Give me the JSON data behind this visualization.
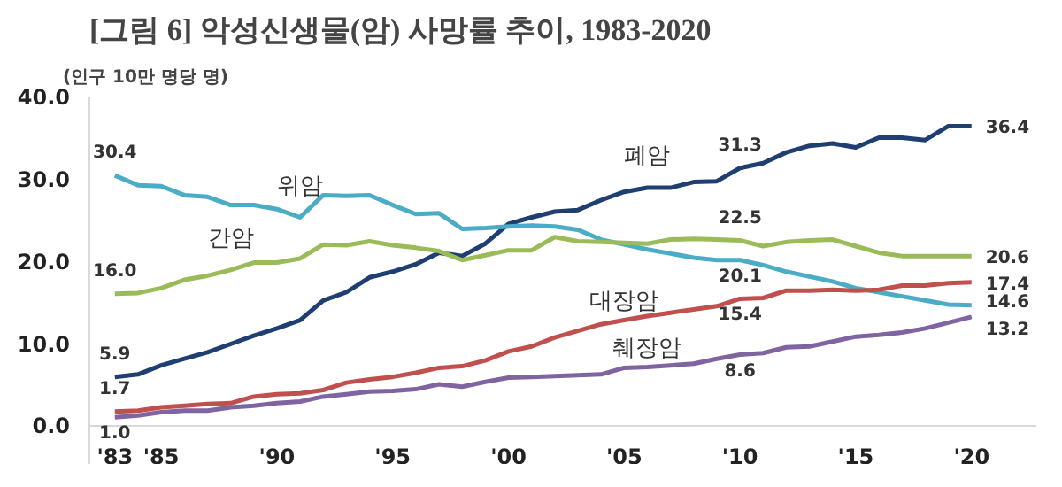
{
  "chart_data": {
    "type": "line",
    "title": "[그림 6] 악성신생물(암) 사망률 추이, 1983-2020",
    "ylabel": "(인구 10만 명당 명)",
    "x": [
      1983,
      1984,
      1985,
      1986,
      1987,
      1988,
      1989,
      1990,
      1991,
      1992,
      1993,
      1994,
      1995,
      1996,
      1997,
      1998,
      1999,
      2000,
      2001,
      2002,
      2003,
      2004,
      2005,
      2006,
      2007,
      2008,
      2009,
      2010,
      2011,
      2012,
      2013,
      2014,
      2015,
      2016,
      2017,
      2018,
      2019,
      2020
    ],
    "xlim": [
      1981.9,
      2022.8
    ],
    "xticks": [
      {
        "value": 1983,
        "label": "'83"
      },
      {
        "value": 1985,
        "label": "'85"
      },
      {
        "value": 1990,
        "label": "'90"
      },
      {
        "value": 1995,
        "label": "'95"
      },
      {
        "value": 2000,
        "label": "'00"
      },
      {
        "value": 2005,
        "label": "'05"
      },
      {
        "value": 2010,
        "label": "'10"
      },
      {
        "value": 2015,
        "label": "'15"
      },
      {
        "value": 2020,
        "label": "'20"
      }
    ],
    "ylim": [
      0,
      40
    ],
    "yticks": [
      {
        "value": 0,
        "label": "0.0"
      },
      {
        "value": 10,
        "label": "10.0"
      },
      {
        "value": 20,
        "label": "20.0"
      },
      {
        "value": 30,
        "label": "30.0"
      },
      {
        "value": 40,
        "label": "40.0"
      }
    ],
    "grid": false,
    "marker": "none",
    "line_style": "solid",
    "series": [
      {
        "name": "폐암",
        "color": "#1f3f73",
        "values": [
          5.9,
          6.2,
          7.3,
          8.1,
          8.9,
          9.9,
          10.9,
          11.8,
          12.8,
          15.2,
          16.2,
          18.0,
          18.7,
          19.6,
          21.0,
          20.6,
          22.1,
          24.5,
          25.3,
          26.0,
          26.2,
          27.4,
          28.4,
          28.9,
          28.9,
          29.6,
          29.7,
          31.3,
          31.9,
          33.2,
          34.0,
          34.3,
          33.8,
          35.0,
          35.0,
          34.7,
          36.4,
          36.4
        ],
        "value_labels": [
          "5.9",
          null,
          null,
          null,
          null,
          null,
          null,
          null,
          null,
          null,
          null,
          null,
          null,
          null,
          null,
          null,
          null,
          null,
          null,
          null,
          null,
          null,
          null,
          null,
          null,
          null,
          null,
          "31.3",
          null,
          null,
          null,
          null,
          null,
          null,
          null,
          null,
          null,
          "36.4"
        ]
      },
      {
        "name": "위암",
        "color": "#4bacc6",
        "values": [
          30.4,
          29.2,
          29.1,
          28.0,
          27.8,
          26.8,
          26.8,
          26.3,
          25.3,
          28.0,
          27.9,
          28.0,
          26.8,
          25.7,
          25.8,
          23.9,
          24.0,
          24.2,
          24.3,
          24.2,
          23.8,
          22.6,
          22.0,
          21.4,
          20.9,
          20.4,
          20.1,
          20.1,
          19.5,
          18.7,
          18.1,
          17.5,
          16.7,
          16.2,
          15.7,
          15.2,
          14.7,
          14.6
        ],
        "value_labels": [
          "30.4",
          null,
          null,
          null,
          null,
          null,
          null,
          null,
          null,
          null,
          null,
          null,
          null,
          null,
          null,
          null,
          null,
          null,
          null,
          null,
          null,
          null,
          null,
          null,
          null,
          null,
          null,
          "20.1",
          null,
          null,
          null,
          null,
          null,
          null,
          null,
          null,
          null,
          "14.6"
        ]
      },
      {
        "name": "간암",
        "color": "#9bbb59",
        "values": [
          16.0,
          16.1,
          16.7,
          17.7,
          18.2,
          18.9,
          19.8,
          19.8,
          20.3,
          22.0,
          21.9,
          22.4,
          21.9,
          21.6,
          21.2,
          20.1,
          20.7,
          21.3,
          21.3,
          22.9,
          22.4,
          22.3,
          22.2,
          22.1,
          22.6,
          22.7,
          22.6,
          22.5,
          21.8,
          22.3,
          22.5,
          22.6,
          21.8,
          21.0,
          20.6,
          20.6,
          20.6,
          20.6
        ],
        "value_labels": [
          "16.0",
          null,
          null,
          null,
          null,
          null,
          null,
          null,
          null,
          null,
          null,
          null,
          null,
          null,
          null,
          null,
          null,
          null,
          null,
          null,
          null,
          null,
          null,
          null,
          null,
          null,
          null,
          "22.5",
          null,
          null,
          null,
          null,
          null,
          null,
          null,
          null,
          null,
          "20.6"
        ]
      },
      {
        "name": "대장암",
        "color": "#c0504d",
        "values": [
          1.7,
          1.8,
          2.2,
          2.4,
          2.6,
          2.7,
          3.5,
          3.8,
          3.9,
          4.3,
          5.2,
          5.6,
          5.9,
          6.4,
          7.0,
          7.2,
          7.9,
          9.0,
          9.6,
          10.7,
          11.5,
          12.3,
          12.8,
          13.3,
          13.7,
          14.1,
          14.5,
          15.4,
          15.5,
          16.4,
          16.4,
          16.5,
          16.4,
          16.5,
          17.0,
          17.0,
          17.3,
          17.4
        ],
        "value_labels": [
          "1.7",
          null,
          null,
          null,
          null,
          null,
          null,
          null,
          null,
          null,
          null,
          null,
          null,
          null,
          null,
          null,
          null,
          null,
          null,
          null,
          null,
          null,
          null,
          null,
          null,
          null,
          null,
          "15.4",
          null,
          null,
          null,
          null,
          null,
          null,
          null,
          null,
          null,
          "17.4"
        ]
      },
      {
        "name": "췌장암",
        "color": "#8064a2",
        "values": [
          1.0,
          1.2,
          1.6,
          1.8,
          1.8,
          2.2,
          2.4,
          2.7,
          2.9,
          3.5,
          3.8,
          4.1,
          4.2,
          4.4,
          5.0,
          4.7,
          5.3,
          5.8,
          5.9,
          6.0,
          6.1,
          6.2,
          7.0,
          7.1,
          7.3,
          7.5,
          8.1,
          8.6,
          8.8,
          9.5,
          9.6,
          10.2,
          10.8,
          11.0,
          11.3,
          11.8,
          12.5,
          13.2
        ],
        "value_labels": [
          "1.0",
          null,
          null,
          null,
          null,
          null,
          null,
          null,
          null,
          null,
          null,
          null,
          null,
          null,
          null,
          null,
          null,
          null,
          null,
          null,
          null,
          null,
          null,
          null,
          null,
          null,
          null,
          "8.6",
          null,
          null,
          null,
          null,
          null,
          null,
          null,
          null,
          null,
          "13.2"
        ]
      }
    ]
  }
}
